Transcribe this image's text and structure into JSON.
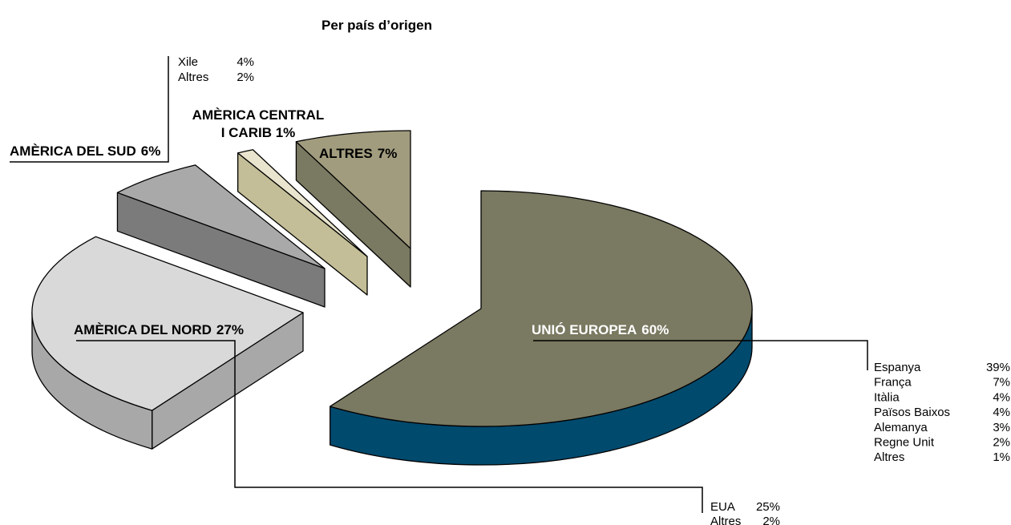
{
  "chart_data": {
    "type": "pie3d",
    "title": "Per país d’origen",
    "categories": [
      "UNIÓ EUROPEA",
      "AMÈRICA DEL NORD",
      "AMÈRICA DEL SUD",
      "AMÈRICA CENTRAL I CARIB",
      "ALTRES"
    ],
    "values": [
      60,
      27,
      6,
      1,
      7
    ],
    "value_labels": [
      "60%",
      "27%",
      "6%",
      "1%",
      "7%"
    ],
    "colors": [
      "#7a7961",
      "#d9d9d9",
      "#a9a9a9",
      "#e9e4cd",
      "#a19c7e"
    ],
    "side_colors": [
      "#004a6e",
      "#a8a8a8",
      "#7b7b7b",
      "#c3be97",
      "#7a7961"
    ],
    "breakdowns": [
      {
        "names": [
          "Espanya",
          "França",
          "Itàlia",
          "Països Baixos",
          "Alemanya",
          "Regne Unit",
          "Altres"
        ],
        "values": [
          39,
          7,
          4,
          4,
          3,
          2,
          1
        ],
        "value_labels": [
          "39%",
          "7%",
          "4%",
          "4%",
          "3%",
          "2%",
          "1%"
        ]
      },
      {
        "names": [
          "EUA",
          "Altres"
        ],
        "values": [
          25,
          2
        ],
        "value_labels": [
          "25%",
          "2%"
        ]
      },
      {
        "names": [
          "Xile",
          "Altres"
        ],
        "values": [
          4,
          2
        ],
        "value_labels": [
          "4%",
          "2%"
        ]
      },
      null,
      null
    ]
  }
}
